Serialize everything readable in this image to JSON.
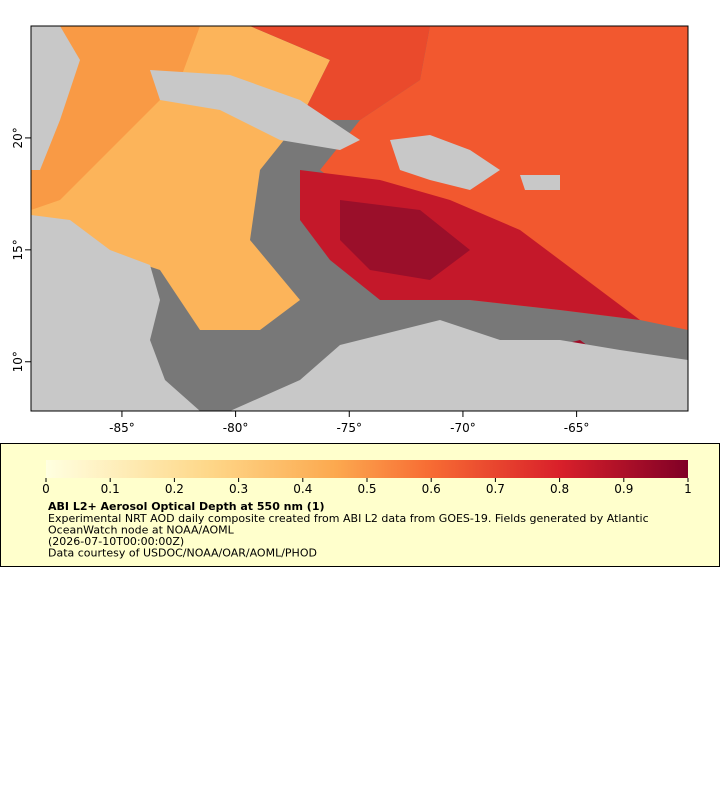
{
  "map": {
    "xlim": [
      -89.0,
      -60.1
    ],
    "ylim": [
      7.8,
      25.0
    ],
    "xticks": [
      {
        "value": -85,
        "label": "-85°"
      },
      {
        "value": -80,
        "label": "-80°"
      },
      {
        "value": -75,
        "label": "-75°"
      },
      {
        "value": -70,
        "label": "-70°"
      },
      {
        "value": -65,
        "label": "-65°"
      }
    ],
    "yticks": [
      {
        "value": 10,
        "label": "10°"
      },
      {
        "value": 15,
        "label": "15°"
      },
      {
        "value": 20,
        "label": "20°"
      }
    ]
  },
  "colorbar": {
    "lim": [
      0,
      1
    ],
    "ticks": [
      0,
      0.1,
      0.2,
      0.3,
      0.4,
      0.5,
      0.6,
      0.7,
      0.8,
      0.9,
      1
    ]
  },
  "legend": {
    "title": "ABI L2+ Aerosol Optical Depth at 550 nm (1)",
    "lines": [
      "Experimental NRT AOD daily composite created from ABI L2 data from GOES-19. Fields generated by Atlantic",
      "OceanWatch node at NOAA/AOML",
      "(2026-07-10T00:00:00Z)",
      "Data courtesy of USDOC/NOAA/OAR/AOML/PHOD"
    ]
  }
}
